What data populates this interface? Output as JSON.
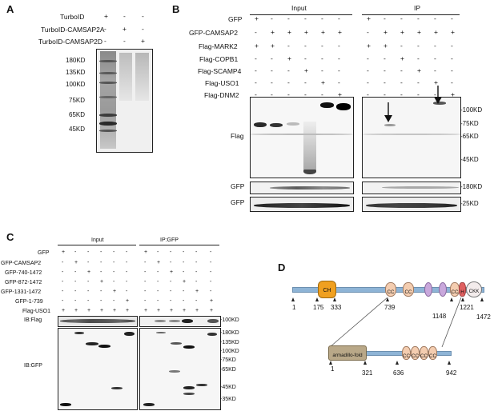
{
  "panels": {
    "A": "A",
    "B": "B",
    "C": "C",
    "D": "D"
  },
  "panelA": {
    "rows": [
      "TurboID",
      "TurboID-CAMSAP2A",
      "TurboID-CAMSAP2D"
    ],
    "signs": [
      [
        "+",
        "-",
        "-"
      ],
      [
        "-",
        "+",
        "-"
      ],
      [
        "-",
        "-",
        "+"
      ]
    ],
    "markers": [
      "180KD",
      "135KD",
      "100KD",
      "75KD",
      "65KD",
      "45KD"
    ]
  },
  "panelB": {
    "input_title": "Input",
    "ip_title": "IP",
    "rows": [
      "GFP",
      "GFP-CAMSAP2",
      "Flag-MARK2",
      "Flag-COPB1",
      "Flag-SCAMP4",
      "Flag-USO1",
      "Flag-DNM2"
    ],
    "signs": [
      [
        "+",
        "-",
        "-",
        "-",
        "-",
        "-"
      ],
      [
        "-",
        "+",
        "+",
        "+",
        "+",
        "+"
      ],
      [
        "+",
        "+",
        "-",
        "-",
        "-",
        "-"
      ],
      [
        "-",
        "-",
        "+",
        "-",
        "-",
        "-"
      ],
      [
        "-",
        "-",
        "-",
        "+",
        "-",
        "-"
      ],
      [
        "-",
        "-",
        "-",
        "-",
        "+",
        "-"
      ],
      [
        "-",
        "-",
        "-",
        "-",
        "-",
        "+"
      ]
    ],
    "blot_labels": [
      "Flag",
      "GFP",
      "GFP"
    ],
    "markers": [
      "-100KD",
      "-75KD",
      "-65KD",
      "-45KD",
      "-180KD",
      "-25KD"
    ]
  },
  "panelC": {
    "input_title": "Input",
    "ip_title": "IP:GFP",
    "rows": [
      "GFP",
      "GFP-CAMSAP2",
      "GFP-740-1472",
      "GFP-872-1472",
      "GFP-1331-1472",
      "GFP-1-739",
      "Flag-USO1"
    ],
    "signs": [
      [
        "+",
        "-",
        "-",
        "-",
        "-",
        "-"
      ],
      [
        "-",
        "+",
        "-",
        "-",
        "-",
        "-"
      ],
      [
        "-",
        "-",
        "+",
        "-",
        "-",
        "-"
      ],
      [
        "-",
        "-",
        "-",
        "+",
        "-",
        "-"
      ],
      [
        "-",
        "-",
        "-",
        "-",
        "+",
        "-"
      ],
      [
        "-",
        "-",
        "-",
        "-",
        "-",
        "+"
      ],
      [
        "+",
        "+",
        "+",
        "+",
        "+",
        "+"
      ]
    ],
    "blot_labels": [
      "IB:Flag",
      "IB:GFP"
    ],
    "markers": [
      "-100KD",
      "-180KD",
      "-135KD",
      "-100KD",
      "-75KD",
      "-65KD",
      "-45KD",
      "-35KD"
    ]
  },
  "panelD": {
    "top_domains": [
      "CH",
      "CC",
      "CC",
      "CC",
      "H",
      "CKK"
    ],
    "top_positions": [
      "1",
      "175",
      "333",
      "739",
      "1148",
      "1221",
      "1472"
    ],
    "bottom_domains": [
      "armadillo-fold",
      "CC",
      "CC",
      "CC",
      "CC"
    ],
    "bottom_positions": [
      "1",
      "321",
      "636",
      "942"
    ],
    "colors": {
      "ch": "#f0a020",
      "cc": "#f4cdb0",
      "coil": "#c9a8dc",
      "h": "#e06060",
      "ckk": "#f3ecec",
      "arm": "#b9a888",
      "backbone": "#8eb4d6"
    }
  }
}
